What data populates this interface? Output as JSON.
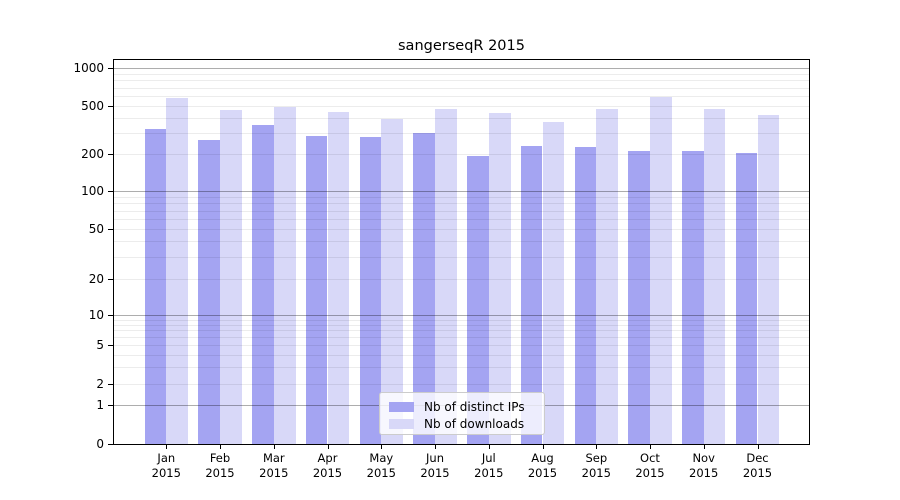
{
  "title": "sangerseqR 2015",
  "chart_data": {
    "type": "bar",
    "title": "sangerseqR 2015",
    "categories": [
      "Jan",
      "Feb",
      "Mar",
      "Apr",
      "May",
      "Jun",
      "Jul",
      "Aug",
      "Sep",
      "Oct",
      "Nov",
      "Dec"
    ],
    "category_year": "2015",
    "series": [
      {
        "name": "Nb of distinct IPs",
        "color": "#a4a4f2",
        "values": [
          325,
          260,
          345,
          280,
          275,
          300,
          193,
          232,
          227,
          212,
          211,
          203
        ]
      },
      {
        "name": "Nb of downloads",
        "color": "#d8d8f8",
        "values": [
          575,
          465,
          490,
          445,
          390,
          470,
          435,
          370,
          470,
          590,
          470,
          420
        ]
      }
    ],
    "yscale": "log-with-zero-baseline",
    "y_ticks": [
      0,
      1,
      2,
      5,
      10,
      20,
      50,
      100,
      200,
      500,
      1000
    ],
    "ylim": [
      0,
      1185
    ],
    "xlabel": "",
    "ylabel": "",
    "grid": true,
    "legend_position": "lower center"
  }
}
